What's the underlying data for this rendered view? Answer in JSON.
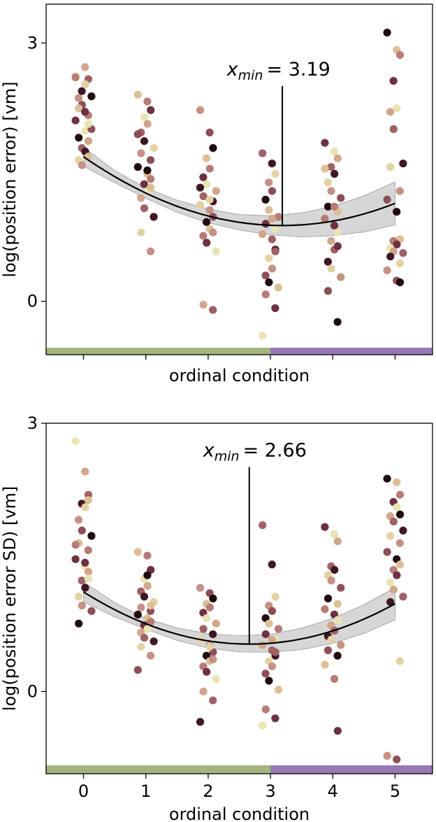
{
  "chart_data": [
    {
      "type": "scatter",
      "panel": "top",
      "xlabel": "ordinal condition",
      "ylabel": "log(position error) [vm]",
      "xlim": [
        -0.6,
        5.6
      ],
      "ylim": [
        -0.62,
        3.45
      ],
      "xticks": [
        0,
        1,
        2,
        3,
        4,
        5
      ],
      "show_xtick_labels": false,
      "yticks": [
        0,
        3
      ],
      "ytick_labels": [
        "0",
        "3"
      ],
      "color_bar": [
        {
          "from": -0.6,
          "to": 3.0,
          "color": "#a3b57d"
        },
        {
          "from": 3.0,
          "to": 5.6,
          "color": "#9878b4"
        }
      ],
      "fit": {
        "a": 0.0785,
        "xmin": 3.19,
        "ymin": 0.88,
        "band_half_width": [
          0.11,
          0.07,
          0.06,
          0.07,
          0.08,
          0.09,
          0.11,
          0.14,
          0.17,
          0.21,
          0.25
        ]
      },
      "annotation": {
        "prefix": "x",
        "subscript": "min",
        "value_text": "= 3.19",
        "x": 3.19,
        "y_top": 2.5,
        "label_x": 2.3,
        "label_y": 2.62
      },
      "points": [
        {
          "x": 0,
          "y": [
            2.62,
            2.72,
            2.58,
            2.44,
            2.52,
            2.36,
            2.28,
            2.38,
            2.24,
            2.16,
            2.1,
            1.98,
            1.86,
            1.78,
            1.74,
            1.64,
            1.58,
            2.0,
            1.9,
            1.68,
            2.6,
            2.2,
            2.06
          ]
        },
        {
          "x": 1,
          "y": [
            2.4,
            2.32,
            2.22,
            2.14,
            2.06,
            1.96,
            1.86,
            1.78,
            1.72,
            1.64,
            1.56,
            1.48,
            1.42,
            1.36,
            1.28,
            1.2,
            1.08,
            0.98,
            0.8,
            0.58,
            1.94,
            1.52,
            1.32
          ]
        },
        {
          "x": 2,
          "y": [
            2.22,
            1.96,
            1.78,
            1.66,
            1.54,
            1.44,
            1.36,
            1.28,
            1.22,
            1.16,
            1.12,
            1.06,
            0.98,
            0.92,
            0.84,
            0.76,
            0.68,
            0.58,
            -0.04,
            -0.1,
            1.32,
            1.18,
            0.8
          ]
        },
        {
          "x": 3,
          "y": [
            1.72,
            1.6,
            1.48,
            1.38,
            1.28,
            1.18,
            1.06,
            0.98,
            0.9,
            0.84,
            0.78,
            0.72,
            0.6,
            0.5,
            0.38,
            0.3,
            0.22,
            0.16,
            0.08,
            -0.08,
            -0.4,
            0.96,
            0.58
          ]
        },
        {
          "x": 4,
          "y": [
            1.84,
            1.74,
            1.66,
            1.56,
            1.48,
            1.38,
            1.28,
            1.2,
            1.1,
            1.04,
            0.96,
            0.88,
            0.8,
            0.7,
            0.6,
            0.46,
            0.38,
            0.28,
            0.12,
            -0.24,
            1.54,
            1.1,
            0.64
          ]
        },
        {
          "x": 5,
          "y": [
            3.12,
            2.92,
            2.86,
            2.56,
            2.24,
            2.2,
            2.0,
            1.6,
            1.56,
            1.28,
            1.18,
            1.04,
            0.72,
            0.7,
            0.66,
            0.62,
            0.58,
            0.56,
            0.52,
            0.44,
            0.36,
            0.24,
            0.22
          ]
        }
      ]
    },
    {
      "type": "scatter",
      "panel": "bottom",
      "xlabel": "ordinal condition",
      "ylabel": "log(position error SD) [vm]",
      "xlim": [
        -0.6,
        5.6
      ],
      "ylim": [
        -0.92,
        3.0
      ],
      "xticks": [
        0,
        1,
        2,
        3,
        4,
        5
      ],
      "xtick_labels": [
        "0",
        "1",
        "2",
        "3",
        "4",
        "5"
      ],
      "show_xtick_labels": true,
      "yticks": [
        0,
        3
      ],
      "ytick_labels": [
        "0",
        "3"
      ],
      "color_bar": [
        {
          "from": -0.6,
          "to": 3.0,
          "color": "#a3b57d"
        },
        {
          "from": 3.0,
          "to": 5.6,
          "color": "#9878b4"
        }
      ],
      "fit": {
        "a": 0.0825,
        "xmin": 2.66,
        "ymin": 0.53,
        "band_half_width": [
          0.11,
          0.08,
          0.06,
          0.07,
          0.08,
          0.09,
          0.1,
          0.12,
          0.14,
          0.16,
          0.18
        ]
      },
      "annotation": {
        "prefix": "x",
        "subscript": "min",
        "value_text": "= 2.66",
        "x": 2.66,
        "y_top": 2.51,
        "label_x": 1.92,
        "label_y": 2.63
      },
      "points": [
        {
          "x": 0,
          "y": [
            2.8,
            2.46,
            2.2,
            2.1,
            2.06,
            1.92,
            1.8,
            1.74,
            1.66,
            1.58,
            1.48,
            1.4,
            1.34,
            1.24,
            1.16,
            1.06,
            0.96,
            0.9,
            0.76,
            2.14,
            1.64,
            1.44,
            1.26
          ]
        },
        {
          "x": 1,
          "y": [
            1.56,
            1.52,
            1.36,
            1.26,
            1.18,
            1.12,
            1.06,
            1.0,
            0.94,
            0.9,
            0.86,
            0.82,
            0.78,
            0.74,
            0.7,
            0.66,
            0.6,
            0.56,
            0.5,
            0.4,
            0.24,
            1.3,
            0.96
          ]
        },
        {
          "x": 2,
          "y": [
            1.16,
            1.1,
            1.04,
            0.98,
            0.94,
            0.88,
            0.82,
            0.76,
            0.7,
            0.64,
            0.58,
            0.52,
            0.44,
            0.4,
            0.34,
            0.28,
            0.22,
            0.14,
            0.0,
            -0.1,
            -0.34,
            0.5,
            0.36
          ]
        },
        {
          "x": 3,
          "y": [
            1.86,
            1.42,
            1.06,
            0.96,
            0.9,
            0.82,
            0.76,
            0.7,
            0.64,
            0.58,
            0.52,
            0.46,
            0.4,
            0.34,
            0.28,
            0.2,
            0.12,
            0.02,
            -0.2,
            -0.3,
            -0.38,
            0.58,
            0.44
          ]
        },
        {
          "x": 4,
          "y": [
            1.84,
            1.76,
            1.68,
            1.4,
            1.36,
            1.3,
            1.24,
            1.16,
            1.04,
            0.98,
            0.92,
            0.86,
            0.8,
            0.74,
            0.68,
            0.62,
            0.58,
            0.52,
            0.46,
            0.4,
            0.3,
            0.14,
            -0.44
          ]
        },
        {
          "x": 5,
          "y": [
            2.38,
            2.34,
            2.2,
            2.12,
            2.06,
            1.96,
            1.9,
            1.8,
            1.74,
            1.66,
            1.56,
            1.48,
            1.42,
            1.36,
            1.3,
            1.22,
            1.14,
            1.06,
            1.0,
            0.34,
            -0.72,
            -0.76,
            1.98
          ]
        }
      ]
    }
  ],
  "palette": [
    "#eae4b4",
    "#e4d2a3",
    "#dcbf96",
    "#d2a68a",
    "#c69185",
    "#b67c76",
    "#a06165",
    "#8c4f58",
    "#6e3141",
    "#3e1722",
    "#1f0a0e"
  ]
}
